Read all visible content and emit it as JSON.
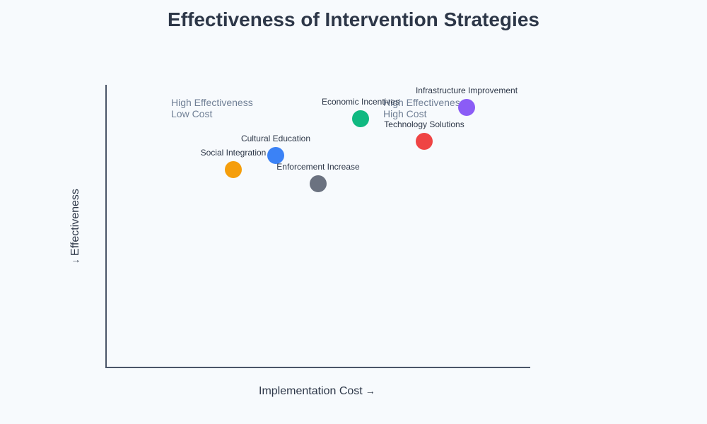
{
  "chart_data": {
    "type": "scatter",
    "title": "Effectiveness of Intervention Strategies",
    "xlabel": "Implementation Cost",
    "ylabel": "Effectiveness",
    "xlim": [
      0,
      100
    ],
    "ylim": [
      0,
      100
    ],
    "grid": false,
    "legend": null,
    "points": [
      {
        "name": "Social Integration",
        "x": 30,
        "y": 70,
        "color": "#f59e0b"
      },
      {
        "name": "Cultural Education",
        "x": 40,
        "y": 75,
        "color": "#3b82f6"
      },
      {
        "name": "Enforcement Increase",
        "x": 50,
        "y": 65,
        "color": "#6b7280"
      },
      {
        "name": "Economic Incentives",
        "x": 60,
        "y": 88,
        "color": "#10b981"
      },
      {
        "name": "Technology Solutions",
        "x": 75,
        "y": 80,
        "color": "#ef4444"
      },
      {
        "name": "Infrastructure Improvement",
        "x": 85,
        "y": 92,
        "color": "#8b5cf6"
      }
    ],
    "annotations": [
      {
        "line1": "High Effectiveness",
        "line2": "Low Cost"
      },
      {
        "line1": "High Effectiveness",
        "line2": "High Cost"
      }
    ]
  },
  "axis": {
    "x_arrow": "→",
    "y_arrow": "↓"
  }
}
